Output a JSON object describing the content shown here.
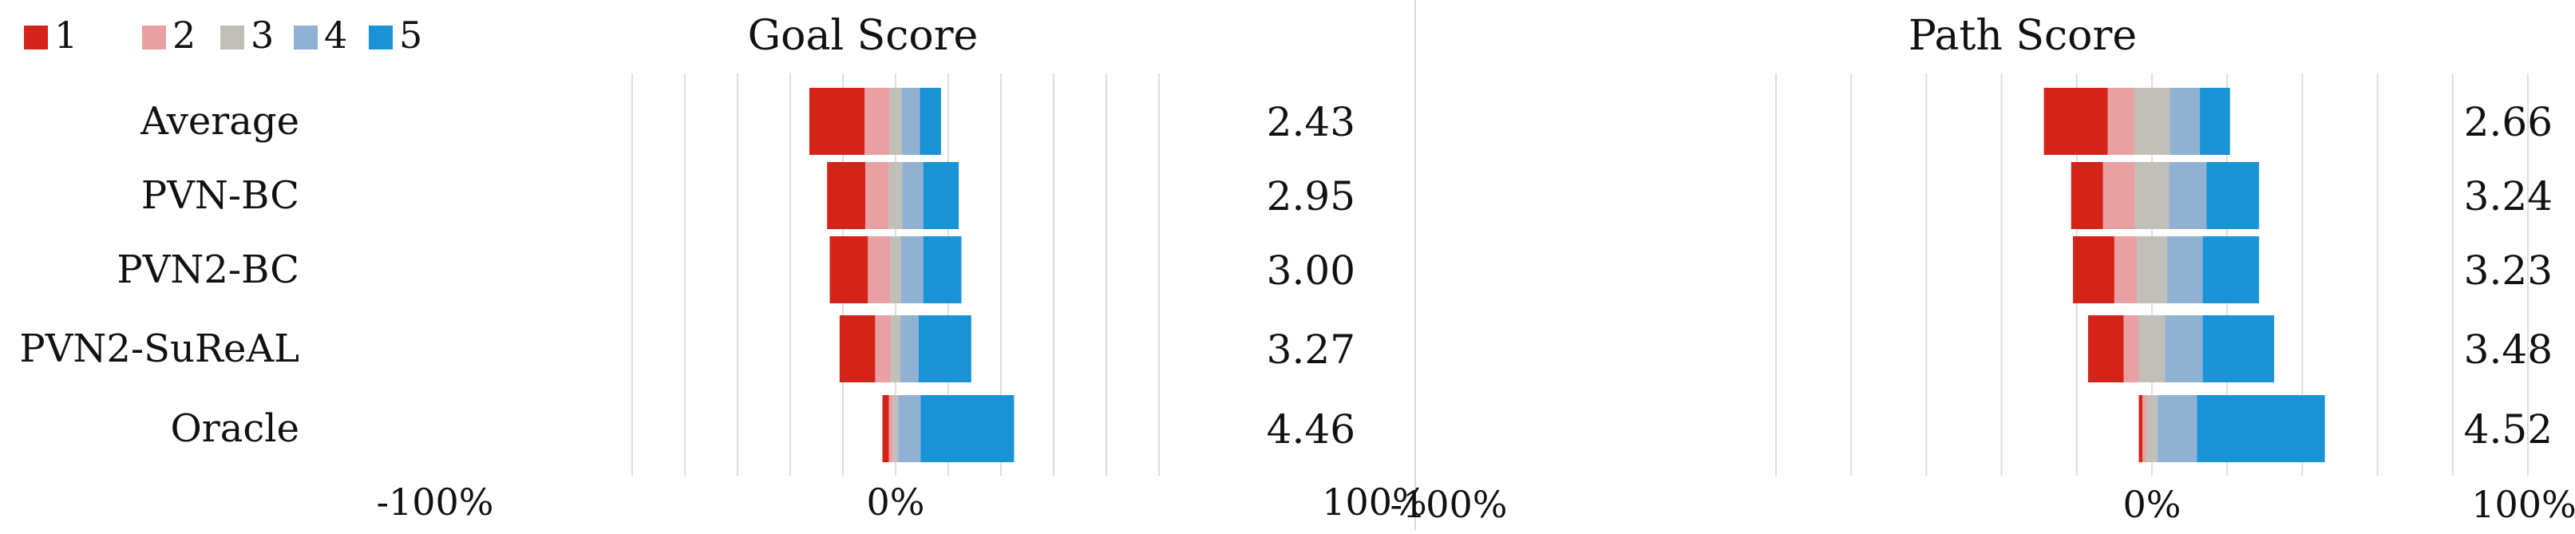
{
  "legend": [
    {
      "label": "1",
      "color": "#d42318"
    },
    {
      "label": "2",
      "color": "#e8a0a2"
    },
    {
      "label": "3",
      "color": "#c0c0b8"
    },
    {
      "label": "4",
      "color": "#91b1d3"
    },
    {
      "label": "5",
      "color": "#1a93d6"
    }
  ],
  "chart_data": [
    {
      "type": "bar",
      "stacked": "diverging",
      "orientation": "horizontal",
      "title": "Goal Score",
      "categories": [
        "Average",
        "PVN-BC",
        "PVN2-BC",
        "PVN2-SuReAL",
        "Oracle"
      ],
      "x_ticks": [
        "-100%",
        "0%",
        "100%"
      ],
      "xlim": [
        -100,
        100
      ],
      "series": [
        {
          "name": "1",
          "values": [
            21,
            14.5,
            14.5,
            13.5,
            2.5
          ]
        },
        {
          "name": "2",
          "values": [
            9.5,
            9,
            8.5,
            6,
            1.5
          ]
        },
        {
          "name": "3",
          "values": [
            4.5,
            5,
            4,
            3.5,
            2
          ]
        },
        {
          "name": "4",
          "values": [
            7,
            8,
            8.5,
            7,
            8.5
          ]
        },
        {
          "name": "5",
          "values": [
            8,
            13.5,
            14.5,
            20,
            35.5
          ]
        }
      ],
      "means": [
        "2.43",
        "2.95",
        "3.00",
        "3.27",
        "4.46"
      ],
      "grid": true
    },
    {
      "type": "bar",
      "stacked": "diverging",
      "orientation": "horizontal",
      "title": "Path Score",
      "categories": [
        "Average",
        "PVN-BC",
        "PVN2-BC",
        "PVN2-SuReAL",
        "Oracle"
      ],
      "x_ticks": [
        "-100%",
        "0%",
        "100%"
      ],
      "xlim": [
        -100,
        100
      ],
      "series": [
        {
          "name": "1",
          "values": [
            17,
            8.5,
            11,
            9.5,
            1
          ]
        },
        {
          "name": "2",
          "values": [
            7,
            8.5,
            6,
            4,
            1
          ]
        },
        {
          "name": "3",
          "values": [
            9.5,
            9,
            8,
            7,
            3
          ]
        },
        {
          "name": "4",
          "values": [
            8,
            10,
            9.5,
            10,
            10.5
          ]
        },
        {
          "name": "5",
          "values": [
            8,
            14,
            15,
            19,
            34
          ]
        }
      ],
      "means": [
        "2.66",
        "3.24",
        "3.23",
        "3.48",
        "4.52"
      ],
      "grid": true
    }
  ]
}
